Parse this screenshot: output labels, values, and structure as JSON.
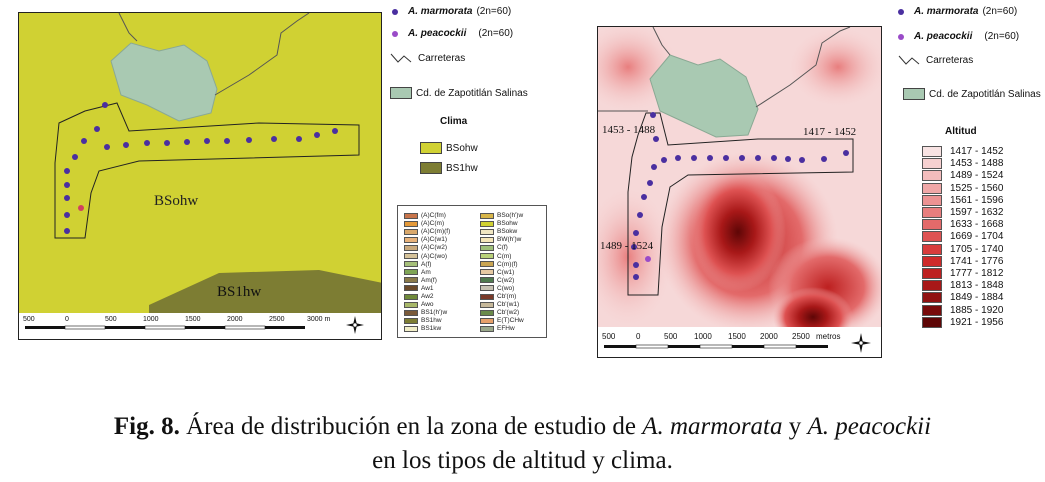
{
  "left_map": {
    "region_labels": {
      "bsohw": "BSohw",
      "bs1hw": "BS1hw"
    },
    "scale_labels": [
      "500",
      "0",
      "500",
      "1000",
      "1500",
      "2000",
      "2500",
      "3000 m"
    ]
  },
  "right_map": {
    "elevation_labels": {
      "top_left": "1453 - 1488",
      "top_right": "1417 - 1452",
      "left": "1489 - 1524"
    },
    "scale_labels": [
      "500",
      "0",
      "500",
      "1000",
      "1500",
      "2000",
      "2500"
    ],
    "scale_unit": "metros"
  },
  "legend": {
    "marmorata": "A. marmorata",
    "marmorata_chrom": "(2n=60)",
    "peacockii": "A. peacockii",
    "peacockii_chrom": "(2n=60)",
    "roads": "Carreteras",
    "city": "Cd. de Zapotitlán Salinas",
    "clima_title": "Clima",
    "clima_items": [
      {
        "label": "BSohw",
        "color": "#d0d133"
      },
      {
        "label": "BS1hw",
        "color": "#7d7d33"
      }
    ],
    "altitude_title": "Altitud",
    "altitude_items": [
      {
        "label": "1417 - 1452",
        "color": "#f8e3e3"
      },
      {
        "label": "1453 - 1488",
        "color": "#f6d0d0"
      },
      {
        "label": "1489 - 1524",
        "color": "#f3bcbc"
      },
      {
        "label": "1525 - 1560",
        "color": "#f0a7a7"
      },
      {
        "label": "1561 - 1596",
        "color": "#ec9393"
      },
      {
        "label": "1597 - 1632",
        "color": "#e87e7e"
      },
      {
        "label": "1633 - 1668",
        "color": "#e36a6a"
      },
      {
        "label": "1669 - 1704",
        "color": "#de5252"
      },
      {
        "label": "1705 - 1740",
        "color": "#d83c3c"
      },
      {
        "label": "1741 - 1776",
        "color": "#cf2a2a"
      },
      {
        "label": "1777 - 1812",
        "color": "#bd2020"
      },
      {
        "label": "1813 - 1848",
        "color": "#a81818"
      },
      {
        "label": "1849 - 1884",
        "color": "#901212"
      },
      {
        "label": "1885 - 1920",
        "color": "#780b0b"
      },
      {
        "label": "1921 - 1956",
        "color": "#5e0606"
      }
    ]
  },
  "clima_box_legend": {
    "left_column": [
      {
        "label": "(A)C(fm)",
        "color": "#c8754b"
      },
      {
        "label": "(A)C(m)",
        "color": "#e59a3a"
      },
      {
        "label": "(A)C(m)(f)",
        "color": "#d9a86b"
      },
      {
        "label": "(A)C(w1)",
        "color": "#e8b27a"
      },
      {
        "label": "(A)C(w2)",
        "color": "#c9a97c"
      },
      {
        "label": "(A)C(wo)",
        "color": "#d6c39a"
      },
      {
        "label": "A(f)",
        "color": "#a6c07a"
      },
      {
        "label": "Am",
        "color": "#7fa556"
      },
      {
        "label": "Am(f)",
        "color": "#8a7a4a"
      },
      {
        "label": "Aw1",
        "color": "#6b4a2a"
      },
      {
        "label": "Aw2",
        "color": "#6f8a3a"
      },
      {
        "label": "Awo",
        "color": "#a8b86a"
      },
      {
        "label": "BS1(h')w",
        "color": "#7a5a3a"
      },
      {
        "label": "BS1hw",
        "color": "#7d7d33"
      },
      {
        "label": "BS1kw",
        "color": "#f2efc9"
      }
    ],
    "right_column": [
      {
        "label": "BSo(h')w",
        "color": "#d8b64a"
      },
      {
        "label": "BSohw",
        "color": "#d0d133"
      },
      {
        "label": "BSokw",
        "color": "#f0e6c2"
      },
      {
        "label": "BW(h')w",
        "color": "#f5e6b8"
      },
      {
        "label": "C(f)",
        "color": "#9fc07a"
      },
      {
        "label": "C(m)",
        "color": "#b9d17a"
      },
      {
        "label": "C(m)(f)",
        "color": "#caa552"
      },
      {
        "label": "C(w1)",
        "color": "#e6c9a3"
      },
      {
        "label": "C(w2)",
        "color": "#4f7a4f"
      },
      {
        "label": "C(wo)",
        "color": "#c7c2b3"
      },
      {
        "label": "Cb'(m)",
        "color": "#7a3a2a"
      },
      {
        "label": "Cb'(w1)",
        "color": "#c6b89a"
      },
      {
        "label": "Cb'(w2)",
        "color": "#6a8a4a"
      },
      {
        "label": "E(T)CHw",
        "color": "#e6a06a"
      },
      {
        "label": "EFHw",
        "color": "#9aa88a"
      }
    ]
  },
  "caption": {
    "fig": "Fig. 8.",
    "text1": " Área de distribución en la zona de estudio de ",
    "sp1": "A. marmorata",
    "and": " y ",
    "sp2": "A. peacockii",
    "line2": "en los tipos de altitud y clima."
  },
  "colors": {
    "marmorata_dot": "#4a2fa0",
    "peacockii_dot": "#9a4bc8",
    "city_fill": "#a9c9b2",
    "bsohw": "#d0d133",
    "bs1hw": "#7d7d33"
  }
}
